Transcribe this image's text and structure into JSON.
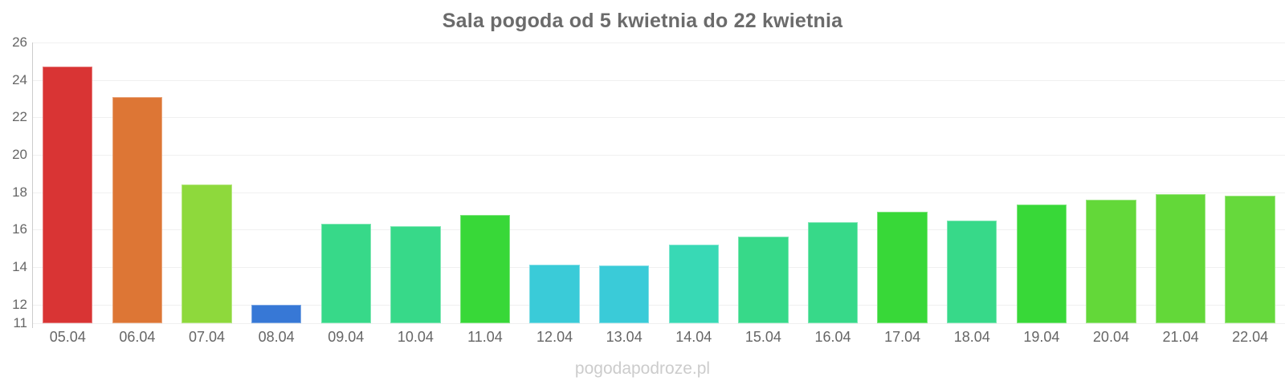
{
  "title": "Sala pogoda od 5 kwietnia do 22 kwietnia",
  "watermark": "pogodapodroze.pl",
  "chart_data": {
    "type": "bar",
    "title": "Sala pogoda od 5 kwietnia do 22 kwietnia",
    "categories": [
      "05.04",
      "06.04",
      "07.04",
      "08.04",
      "09.04",
      "10.04",
      "11.04",
      "12.04",
      "13.04",
      "14.04",
      "15.04",
      "16.04",
      "17.04",
      "18.04",
      "19.04",
      "20.04",
      "21.04",
      "22.04"
    ],
    "values": [
      24.7,
      23.1,
      18.4,
      12.0,
      16.3,
      16.2,
      16.8,
      14.15,
      14.1,
      15.2,
      15.65,
      16.4,
      16.95,
      16.5,
      17.35,
      17.6,
      17.9,
      17.8
    ],
    "colors": [
      "#d93434",
      "#dd7635",
      "#8ed93c",
      "#3778d6",
      "#37d989",
      "#37d989",
      "#38d838",
      "#3acbd8",
      "#3acbd8",
      "#38d9b5",
      "#37d989",
      "#37d989",
      "#38d838",
      "#37d989",
      "#38d838",
      "#63d839",
      "#63d839",
      "#66d93c"
    ],
    "xlabel": "",
    "ylabel": "",
    "ylim": [
      11,
      26
    ],
    "y_ticks": [
      26,
      24,
      22,
      20,
      18,
      16,
      14,
      12,
      11
    ],
    "grid": "horizontal",
    "legend": "none"
  }
}
